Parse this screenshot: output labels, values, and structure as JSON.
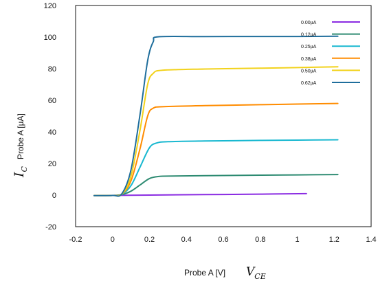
{
  "chart_data": {
    "type": "line",
    "title": "",
    "ylabel": {
      "symbol": "I",
      "subscript": "C",
      "text": "Probe A [µA]"
    },
    "xlabel": {
      "text": "Probe A [V]",
      "symbol": "V",
      "subscript": "CE"
    },
    "xlim": [
      -0.2,
      1.4
    ],
    "ylim": [
      -20,
      120
    ],
    "xticks": [
      "-0.2",
      "0",
      "0.2",
      "0.4",
      "0.6",
      "0.8",
      "1",
      "1.2",
      "1.4"
    ],
    "yticks": [
      "-20",
      "0",
      "20",
      "40",
      "60",
      "80",
      "100",
      "120"
    ],
    "grid": false,
    "legend_position": "top-right",
    "series": [
      {
        "name": "0.00µA",
        "color": "#8a2be2",
        "points": [
          [
            -0.1,
            -0.3
          ],
          [
            0.2,
            0
          ],
          [
            0.5,
            0.3
          ],
          [
            0.8,
            0.6
          ],
          [
            1.05,
            0.9
          ]
        ]
      },
      {
        "name": "0.12µA",
        "color": "#2e8b72",
        "points": [
          [
            -0.1,
            -0.3
          ],
          [
            0.0,
            -0.2
          ],
          [
            0.05,
            0.3
          ],
          [
            0.1,
            2.5
          ],
          [
            0.15,
            6.5
          ],
          [
            0.2,
            10.5
          ],
          [
            0.25,
            11.8
          ],
          [
            0.3,
            12.0
          ],
          [
            0.5,
            12.3
          ],
          [
            0.8,
            12.6
          ],
          [
            1.0,
            12.8
          ],
          [
            1.22,
            13.0
          ]
        ]
      },
      {
        "name": "0.25µA",
        "color": "#18b8d0",
        "points": [
          [
            -0.1,
            -0.3
          ],
          [
            0.0,
            -0.2
          ],
          [
            0.05,
            0.5
          ],
          [
            0.1,
            6
          ],
          [
            0.15,
            18
          ],
          [
            0.2,
            30
          ],
          [
            0.24,
            33
          ],
          [
            0.3,
            33.8
          ],
          [
            0.5,
            34.2
          ],
          [
            0.8,
            34.6
          ],
          [
            1.0,
            34.8
          ],
          [
            1.22,
            35.0
          ]
        ]
      },
      {
        "name": "0.38µA",
        "color": "#ff8c00",
        "points": [
          [
            -0.1,
            -0.3
          ],
          [
            0.0,
            -0.2
          ],
          [
            0.05,
            0.6
          ],
          [
            0.1,
            9
          ],
          [
            0.15,
            30
          ],
          [
            0.19,
            50
          ],
          [
            0.22,
            55
          ],
          [
            0.28,
            56
          ],
          [
            0.5,
            56.6
          ],
          [
            0.8,
            57.2
          ],
          [
            1.0,
            57.6
          ],
          [
            1.22,
            58.0
          ]
        ]
      },
      {
        "name": "0.50µA",
        "color": "#f2d21b",
        "points": [
          [
            -0.1,
            -0.3
          ],
          [
            0.0,
            -0.2
          ],
          [
            0.05,
            0.6
          ],
          [
            0.1,
            12
          ],
          [
            0.15,
            42
          ],
          [
            0.19,
            70
          ],
          [
            0.22,
            77
          ],
          [
            0.27,
            79
          ],
          [
            0.5,
            79.8
          ],
          [
            0.8,
            80.3
          ],
          [
            1.0,
            80.7
          ],
          [
            1.22,
            81.2
          ]
        ]
      },
      {
        "name": "0.62µA",
        "color": "#1f6e9c",
        "points": [
          [
            -0.1,
            -0.3
          ],
          [
            0.0,
            -0.2
          ],
          [
            0.05,
            0.8
          ],
          [
            0.1,
            16
          ],
          [
            0.15,
            52
          ],
          [
            0.19,
            85
          ],
          [
            0.22,
            97
          ],
          [
            0.25,
            100.2
          ],
          [
            0.5,
            100.3
          ],
          [
            0.8,
            100.4
          ],
          [
            1.0,
            100.4
          ],
          [
            1.22,
            100.5
          ]
        ]
      }
    ]
  }
}
